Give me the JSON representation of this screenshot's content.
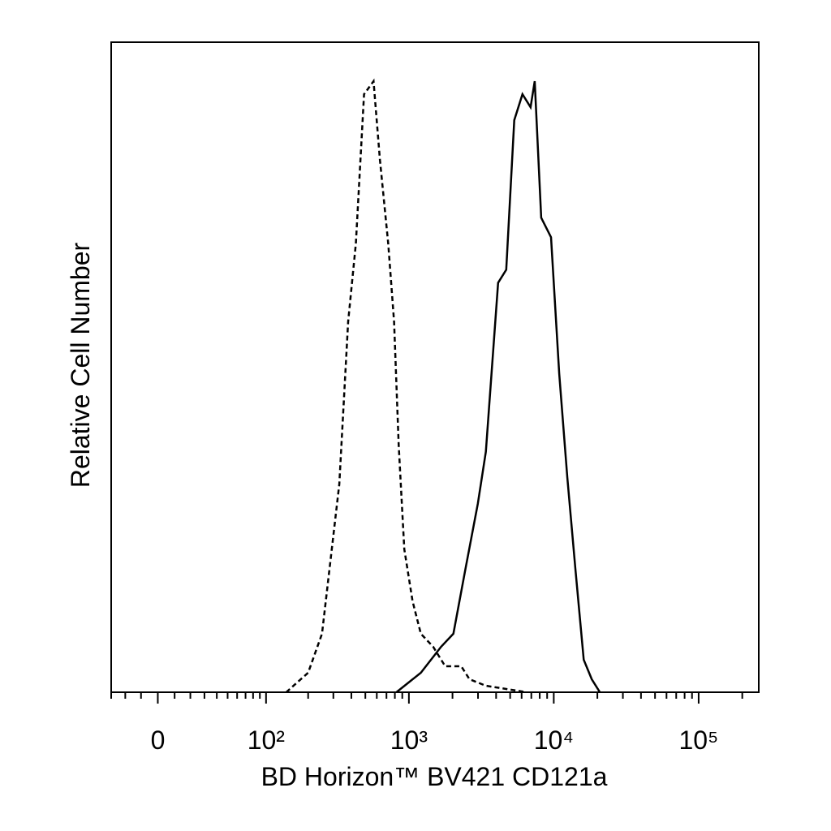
{
  "chart_data": {
    "type": "line",
    "x_label": "BD Horizon™ BV421 CD121a",
    "y_label": "Relative Cell Number",
    "xscale": "biexponential",
    "xlim": [
      -30,
      260000
    ],
    "ylim": [
      0,
      100
    ],
    "xticks": [
      0,
      {
        "value": 100,
        "label": "10²"
      },
      {
        "value": 1000,
        "label": "10³"
      },
      {
        "value": 10000,
        "label": "10⁴"
      },
      {
        "value": 100000,
        "label": "10⁵"
      }
    ],
    "xminorticks": [
      -30,
      -20,
      -10,
      10,
      20,
      30,
      40,
      50,
      60,
      70,
      80,
      90,
      200,
      300,
      400,
      500,
      600,
      700,
      800,
      900,
      2000,
      3000,
      4000,
      5000,
      6000,
      7000,
      8000,
      9000,
      20000,
      30000,
      40000,
      50000,
      60000,
      70000,
      80000,
      90000,
      200000
    ],
    "series": [
      {
        "color": "#000000",
        "line_style": "dashed",
        "x": [
          140,
          200,
          250,
          330,
          380,
          430,
          490,
          570,
          630,
          720,
          790,
          850,
          930,
          1060,
          1210,
          1470,
          1780,
          2300,
          2620,
          3400,
          6500
        ],
        "values": [
          0,
          3,
          9,
          32,
          57,
          69,
          92,
          94,
          82,
          69,
          57,
          38,
          22,
          14,
          9,
          7,
          4,
          4,
          2,
          1,
          0
        ]
      },
      {
        "color": "#000000",
        "line_style": "solid",
        "x": [
          820,
          1210,
          1670,
          2030,
          2460,
          2990,
          3400,
          4130,
          4700,
          5340,
          6080,
          6920,
          7390,
          8190,
          9570,
          10900,
          12400,
          14100,
          16100,
          18300,
          20800
        ],
        "values": [
          0,
          3,
          7,
          9,
          19,
          29,
          37,
          63,
          65,
          88,
          92,
          90,
          94,
          73,
          70,
          49,
          33,
          19,
          5,
          2,
          0
        ]
      }
    ]
  }
}
